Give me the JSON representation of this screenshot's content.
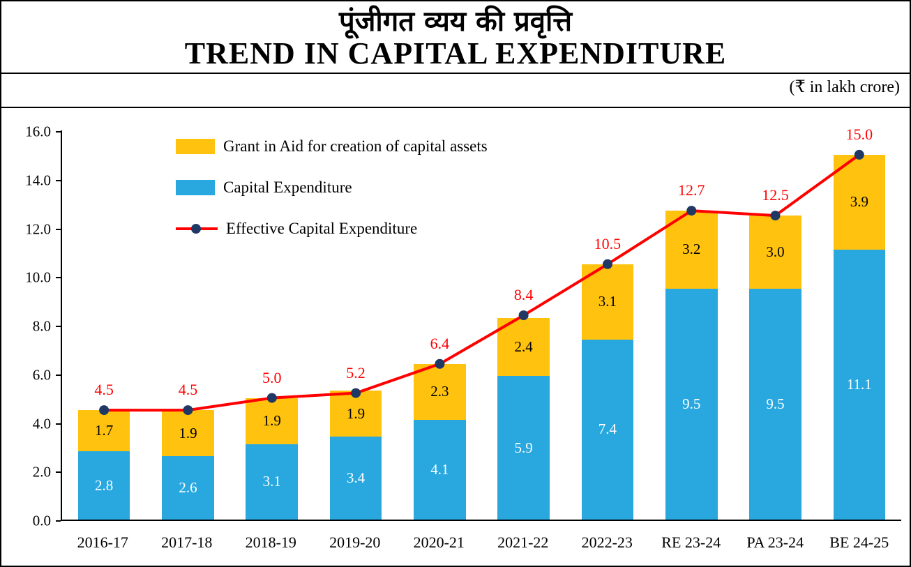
{
  "header": {
    "title_hindi": "पूंजीगत व्यय की प्रवृत्ति",
    "title_english": "TREND IN CAPITAL EXPENDITURE",
    "unit": "(₹ in lakh crore)"
  },
  "legend": {
    "grant_label": "Grant in Aid for creation of capital assets",
    "capex_label": "Capital Expenditure",
    "effective_label": "Effective Capital Expenditure"
  },
  "colors": {
    "grant": "#FFC20E",
    "capex": "#29A8E0",
    "effective_line": "#FF0000",
    "marker": "#1F3864",
    "effective_label_color": "#FF0000"
  },
  "chart_data": {
    "type": "bar",
    "stacked": true,
    "title": "TREND IN CAPITAL EXPENDITURE",
    "unit": "₹ in lakh crore",
    "categories": [
      "2016-17",
      "2017-18",
      "2018-19",
      "2019-20",
      "2020-21",
      "2021-22",
      "2022-23",
      "RE 23-24",
      "PA 23-24",
      "BE 24-25"
    ],
    "series": [
      {
        "name": "Capital Expenditure",
        "type": "bar",
        "color": "#29A8E0",
        "values": [
          2.8,
          2.6,
          3.1,
          3.4,
          4.1,
          5.9,
          7.4,
          9.5,
          9.5,
          11.1
        ]
      },
      {
        "name": "Grant in Aid for creation of capital assets",
        "type": "bar",
        "color": "#FFC20E",
        "values": [
          1.7,
          1.9,
          1.9,
          1.9,
          2.3,
          2.4,
          3.1,
          3.2,
          3.0,
          3.9
        ]
      },
      {
        "name": "Effective Capital Expenditure",
        "type": "line",
        "color": "#FF0000",
        "values": [
          4.5,
          4.5,
          5.0,
          5.2,
          6.4,
          8.4,
          10.5,
          12.7,
          12.5,
          15.0
        ]
      }
    ],
    "xlabel": "",
    "ylabel": "",
    "ylim": [
      0,
      16
    ],
    "ytick_step": 2,
    "ytick_labels": [
      "0.0",
      "2.0",
      "4.0",
      "6.0",
      "8.0",
      "10.0",
      "12.0",
      "14.0",
      "16.0"
    ],
    "grid": false,
    "legend_position": "top-left"
  }
}
